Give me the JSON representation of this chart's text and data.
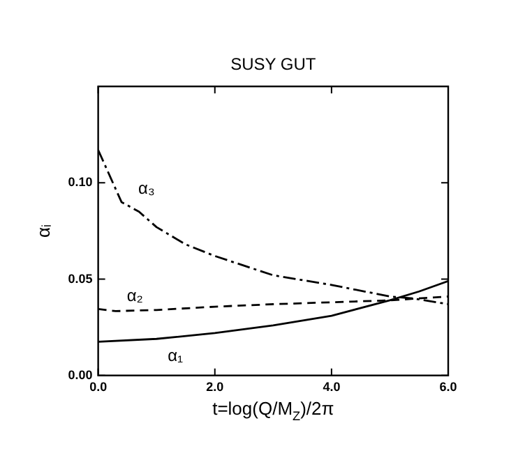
{
  "chart_data": {
    "type": "line",
    "title": "SUSY GUT",
    "xlabel": "t=log(Q/M$_{Z}$)/2π",
    "ylabel": "αᵢ",
    "xlim": [
      0,
      6
    ],
    "ylim": [
      0,
      0.15
    ],
    "xticks": [
      {
        "value": 0,
        "label": "0.0"
      },
      {
        "value": 2,
        "label": "2.0"
      },
      {
        "value": 4,
        "label": "4.0"
      },
      {
        "value": 6,
        "label": "6.0"
      }
    ],
    "yticks": [
      {
        "value": 0,
        "label": "0.00"
      },
      {
        "value": 0.05,
        "label": "0.05"
      },
      {
        "value": 0.1,
        "label": "0.10"
      },
      {
        "value": 0.15,
        "label": null
      }
    ],
    "grid": false,
    "legend": false,
    "marker": "none",
    "series": [
      {
        "name": "α₃",
        "color": "#000000",
        "line_style": "dashed",
        "x": [
          0,
          0.4,
          0.7,
          1,
          1.5,
          2,
          3,
          4,
          5,
          5.4,
          6
        ],
        "values": [
          0.117,
          0.09,
          0.085,
          0.077,
          0.068,
          0.062,
          0.052,
          0.047,
          0.041,
          0.04,
          0.037
        ]
      },
      {
        "name": "α₂",
        "color": "#000000",
        "line_style": "dotted",
        "x": [
          0,
          0.3,
          1,
          2,
          3,
          4,
          5,
          6
        ],
        "values": [
          0.0345,
          0.0334,
          0.034,
          0.0357,
          0.037,
          0.038,
          0.039,
          0.041
        ]
      },
      {
        "name": "α₁",
        "color": "#000000",
        "line_style": "solid",
        "x": [
          0,
          1,
          2,
          3,
          4,
          5,
          5.5,
          6
        ],
        "values": [
          0.0175,
          0.019,
          0.022,
          0.026,
          0.031,
          0.039,
          0.0436,
          0.049
        ]
      }
    ]
  }
}
